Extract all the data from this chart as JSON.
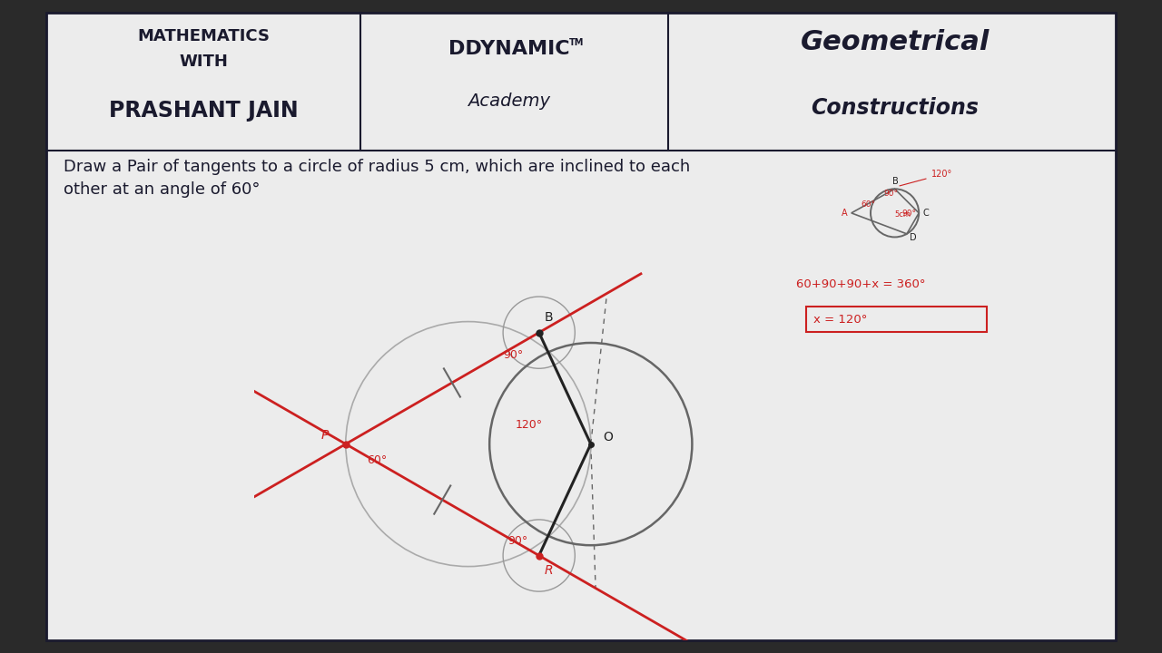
{
  "bg_color": "#2a2a2a",
  "paper_color": "#ececec",
  "header_sep_color": "#444444",
  "dark_color": "#1a1a2e",
  "red_color": "#cc2020",
  "pencil_color": "#666666",
  "dark_pencil": "#222222",
  "title1_line1": "MATHEMATICS",
  "title1_line2": "WITH",
  "title1_line3": "PRASHANT JAIN",
  "title2_line1": "DDYNAMIC",
  "title2_sup": "TM",
  "title2_line2": "Academy",
  "title3_line1": "Geometrical",
  "title3_line2": "Constructions",
  "problem_text1": "Draw a Pair of tangents to a circle of radius 5 cm, which are inclined to each",
  "problem_text2": "other at an angle of 60°",
  "annotation_eq1": "60+90+90+x = 360°",
  "annotation_eq2": "x = 120°"
}
